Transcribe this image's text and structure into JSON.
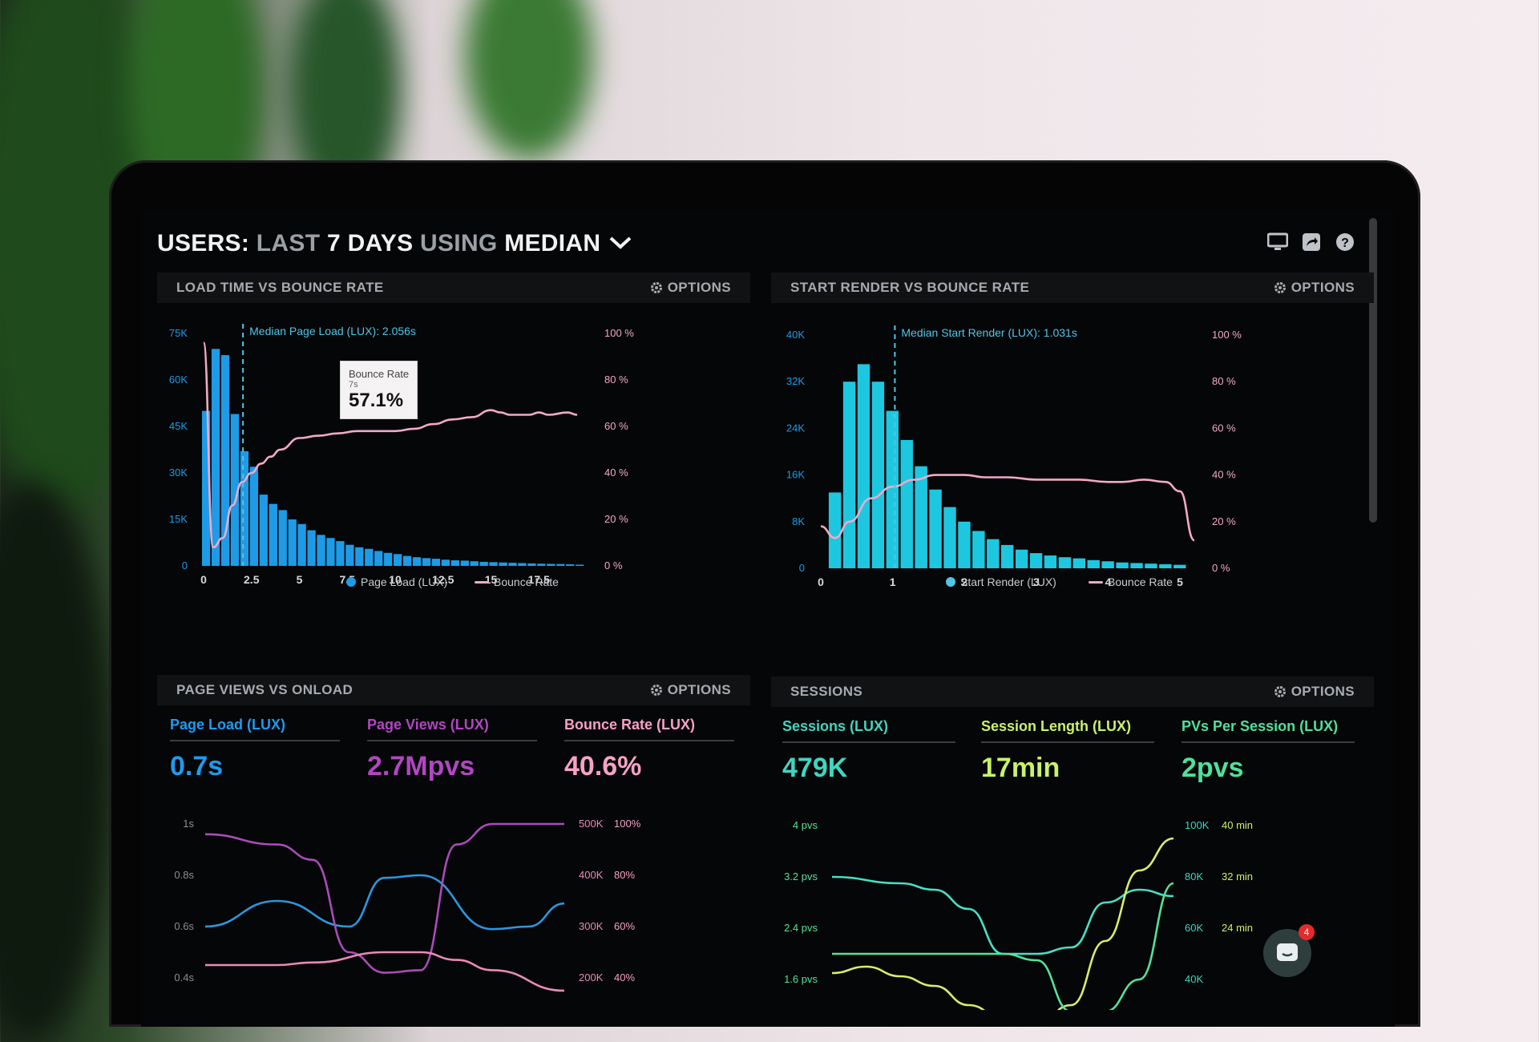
{
  "header": {
    "title_users": "USERS:",
    "title_last": "LAST",
    "title_days": "7 DAYS",
    "title_using": "USING",
    "title_median": "MEDIAN",
    "icons": [
      "monitor-icon",
      "share-icon",
      "help-icon"
    ]
  },
  "options_label": "OPTIONS",
  "panels": {
    "load_time": {
      "title": "LOAD TIME VS BOUNCE RATE",
      "median_label": "Median Page Load (LUX): 2.056s",
      "tooltip": {
        "title": "Bounce Rate",
        "sub": "7s",
        "value": "57.1%"
      },
      "legend": [
        "Page Load (LUX)",
        "Bounce Rate"
      ]
    },
    "start_render": {
      "title": "START RENDER VS BOUNCE RATE",
      "median_label": "Median Start Render (LUX): 1.031s",
      "legend": [
        "Start Render (LUX)",
        "Bounce Rate"
      ]
    },
    "page_views": {
      "title": "PAGE VIEWS VS ONLOAD",
      "metrics": [
        {
          "label": "Page Load (LUX)",
          "value": "0.7s",
          "color": "#1d9bf0"
        },
        {
          "label": "Page Views (LUX)",
          "value": "2.7Mpvs",
          "color": "#b146c2"
        },
        {
          "label": "Bounce Rate (LUX)",
          "value": "40.6%",
          "color": "#f6a1c5"
        }
      ]
    },
    "sessions": {
      "title": "SESSIONS",
      "metrics": [
        {
          "label": "Sessions (LUX)",
          "value": "479K",
          "color": "#3fd5c2"
        },
        {
          "label": "Session Length (LUX)",
          "value": "17min",
          "color": "#c9f26a"
        },
        {
          "label": "PVs Per Session (LUX)",
          "value": "2pvs",
          "color": "#4fe09c"
        }
      ]
    }
  },
  "chat": {
    "badge": "4"
  },
  "chart_data": [
    {
      "type": "bar",
      "title": "LOAD TIME VS BOUNCE RATE",
      "x_ticks": [
        "0",
        "2.5",
        "5",
        "7.5",
        "10",
        "12.5",
        "15",
        "17.5"
      ],
      "y_left_ticks": [
        "0",
        "15K",
        "30K",
        "45K",
        "60K",
        "75K"
      ],
      "y_right_ticks": [
        "0 %",
        "20 %",
        "40 %",
        "60 %",
        "80 %",
        "100 %"
      ],
      "x_range": [
        0,
        20
      ],
      "bar_width": 0.5,
      "series": [
        {
          "name": "Page Load (LUX)",
          "kind": "bar",
          "color": "#1e9be6",
          "x": [
            0,
            0.5,
            1,
            1.5,
            2,
            2.5,
            3,
            3.5,
            4,
            4.5,
            5,
            5.5,
            6,
            6.5,
            7,
            7.5,
            8,
            8.5,
            9,
            9.5,
            10,
            10.5,
            11,
            11.5,
            12,
            12.5,
            13,
            13.5,
            14,
            14.5,
            15,
            15.5,
            16,
            16.5,
            17,
            17.5,
            18,
            18.5,
            19,
            19.5
          ],
          "values": [
            50000,
            70000,
            68000,
            49000,
            37000,
            32000,
            23000,
            20000,
            18000,
            15000,
            13500,
            11500,
            10000,
            9000,
            8000,
            6800,
            6000,
            5500,
            4800,
            4200,
            3800,
            3200,
            2800,
            2500,
            2300,
            2000,
            1800,
            1700,
            1500,
            1300,
            1200,
            1100,
            1000,
            900,
            800,
            700,
            650,
            600,
            500,
            400
          ]
        },
        {
          "name": "Bounce Rate",
          "kind": "line",
          "color": "#f2a9c8",
          "x": [
            0,
            0.5,
            1,
            1.5,
            2,
            2.5,
            3,
            3.5,
            4,
            5,
            6,
            7,
            8,
            9,
            10,
            11,
            12,
            13,
            14,
            15,
            15.5,
            16,
            17,
            17.5,
            18,
            19,
            19.5
          ],
          "values": [
            96,
            8,
            12,
            26,
            36,
            40,
            44,
            47,
            50,
            55,
            56,
            57,
            58,
            58,
            58,
            59,
            61,
            63,
            64,
            67,
            66,
            65,
            65,
            66,
            65,
            66,
            65
          ]
        }
      ],
      "annotations": [
        "Median Page Load (LUX): 2.056s"
      ]
    },
    {
      "type": "bar",
      "title": "START RENDER VS BOUNCE RATE",
      "x_ticks": [
        "0",
        "1",
        "2",
        "3",
        "4",
        "5"
      ],
      "y_left_ticks": [
        "0",
        "8K",
        "16K",
        "24K",
        "32K",
        "40K"
      ],
      "y_right_ticks": [
        "0 %",
        "20 %",
        "40 %",
        "60 %",
        "80 %",
        "100 %"
      ],
      "x_range": [
        0,
        5.2
      ],
      "bar_width": 0.2,
      "series": [
        {
          "name": "Start Render (LUX)",
          "kind": "bar",
          "color": "#1ec7e0",
          "x": [
            0.2,
            0.4,
            0.6,
            0.8,
            1,
            1.2,
            1.4,
            1.6,
            1.8,
            2,
            2.2,
            2.4,
            2.6,
            2.8,
            3,
            3.2,
            3.4,
            3.6,
            3.8,
            4,
            4.2,
            4.4,
            4.6,
            4.8,
            5
          ],
          "values": [
            13000,
            32000,
            35000,
            32000,
            27000,
            22000,
            17500,
            13500,
            10500,
            8000,
            6400,
            5000,
            4000,
            3200,
            2600,
            2200,
            1900,
            1700,
            1400,
            1200,
            1000,
            900,
            800,
            700,
            600
          ]
        },
        {
          "name": "Bounce Rate",
          "kind": "line",
          "color": "#f2a9c8",
          "x": [
            0,
            0.2,
            0.4,
            0.7,
            1,
            1.3,
            1.6,
            2,
            2.3,
            2.6,
            3,
            3.3,
            3.6,
            4,
            4.2,
            4.5,
            4.8,
            5,
            5.2
          ],
          "values": [
            18,
            13,
            20,
            30,
            35,
            38,
            40,
            40,
            39,
            39,
            38,
            38,
            38,
            37,
            37,
            38,
            37,
            33,
            12
          ]
        }
      ],
      "annotations": [
        "Median Start Render (LUX): 1.031s"
      ]
    },
    {
      "type": "line",
      "title": "PAGE VIEWS VS ONLOAD",
      "y_left_ticks": [
        "0.4s",
        "0.6s",
        "0.8s",
        "1s"
      ],
      "y_right_ticks_a": [
        "200K",
        "300K",
        "400K",
        "500K"
      ],
      "y_right_ticks_b": [
        "40%",
        "60%",
        "80%",
        "100%"
      ],
      "x_range": [
        0,
        10
      ],
      "series": [
        {
          "name": "Page Load (LUX)",
          "color": "#2b97e0",
          "x": [
            0,
            2,
            4,
            5,
            6,
            8,
            9,
            10
          ],
          "values": [
            0.6,
            0.7,
            0.6,
            0.79,
            0.8,
            0.59,
            0.6,
            0.69
          ]
        },
        {
          "name": "Page Views (LUX)",
          "color": "#a94cb8",
          "x": [
            0,
            2,
            3,
            4,
            5,
            6,
            7,
            8,
            10
          ],
          "values": [
            480,
            460,
            430,
            250,
            210,
            215,
            460,
            500,
            500
          ]
        },
        {
          "name": "Bounce Rate (LUX)",
          "color": "#e98ab8",
          "x": [
            0,
            2,
            3,
            5,
            6,
            7,
            8,
            10
          ],
          "values": [
            45,
            45,
            46,
            50,
            50,
            47,
            43,
            35
          ]
        }
      ]
    },
    {
      "type": "line",
      "title": "SESSIONS",
      "y_left_ticks": [
        "1.6 pvs",
        "2.4 pvs",
        "3.2 pvs",
        "4 pvs"
      ],
      "y_right_ticks_a": [
        "40K",
        "60K",
        "80K",
        "100K"
      ],
      "y_right_ticks_b": [
        "24 min",
        "32 min",
        "40 min"
      ],
      "x_range": [
        0,
        10
      ],
      "series": [
        {
          "name": "Sessions (LUX)",
          "color": "#46e0c8",
          "x": [
            0,
            2,
            3,
            4,
            5,
            6,
            7,
            8,
            9,
            10
          ],
          "values": [
            3.2,
            3.1,
            3.0,
            2.7,
            2.0,
            2.0,
            2.1,
            2.8,
            3.0,
            2.9
          ]
        },
        {
          "name": "Session Length (LUX)",
          "color": "#d7ee6a",
          "x": [
            0,
            1,
            2,
            3,
            4,
            5,
            6,
            7,
            8,
            9,
            10
          ],
          "values": [
            1.7,
            1.8,
            1.65,
            1.5,
            1.2,
            1.0,
            0.9,
            1.2,
            2.2,
            3.3,
            3.8
          ]
        },
        {
          "name": "PVs Per Session (LUX)",
          "color": "#52e39b",
          "x": [
            0,
            2,
            4,
            5,
            6,
            7,
            8,
            9,
            10
          ],
          "values": [
            2.0,
            2.0,
            2.0,
            2.0,
            1.9,
            1.1,
            1.1,
            1.6,
            3.1
          ]
        }
      ]
    }
  ]
}
